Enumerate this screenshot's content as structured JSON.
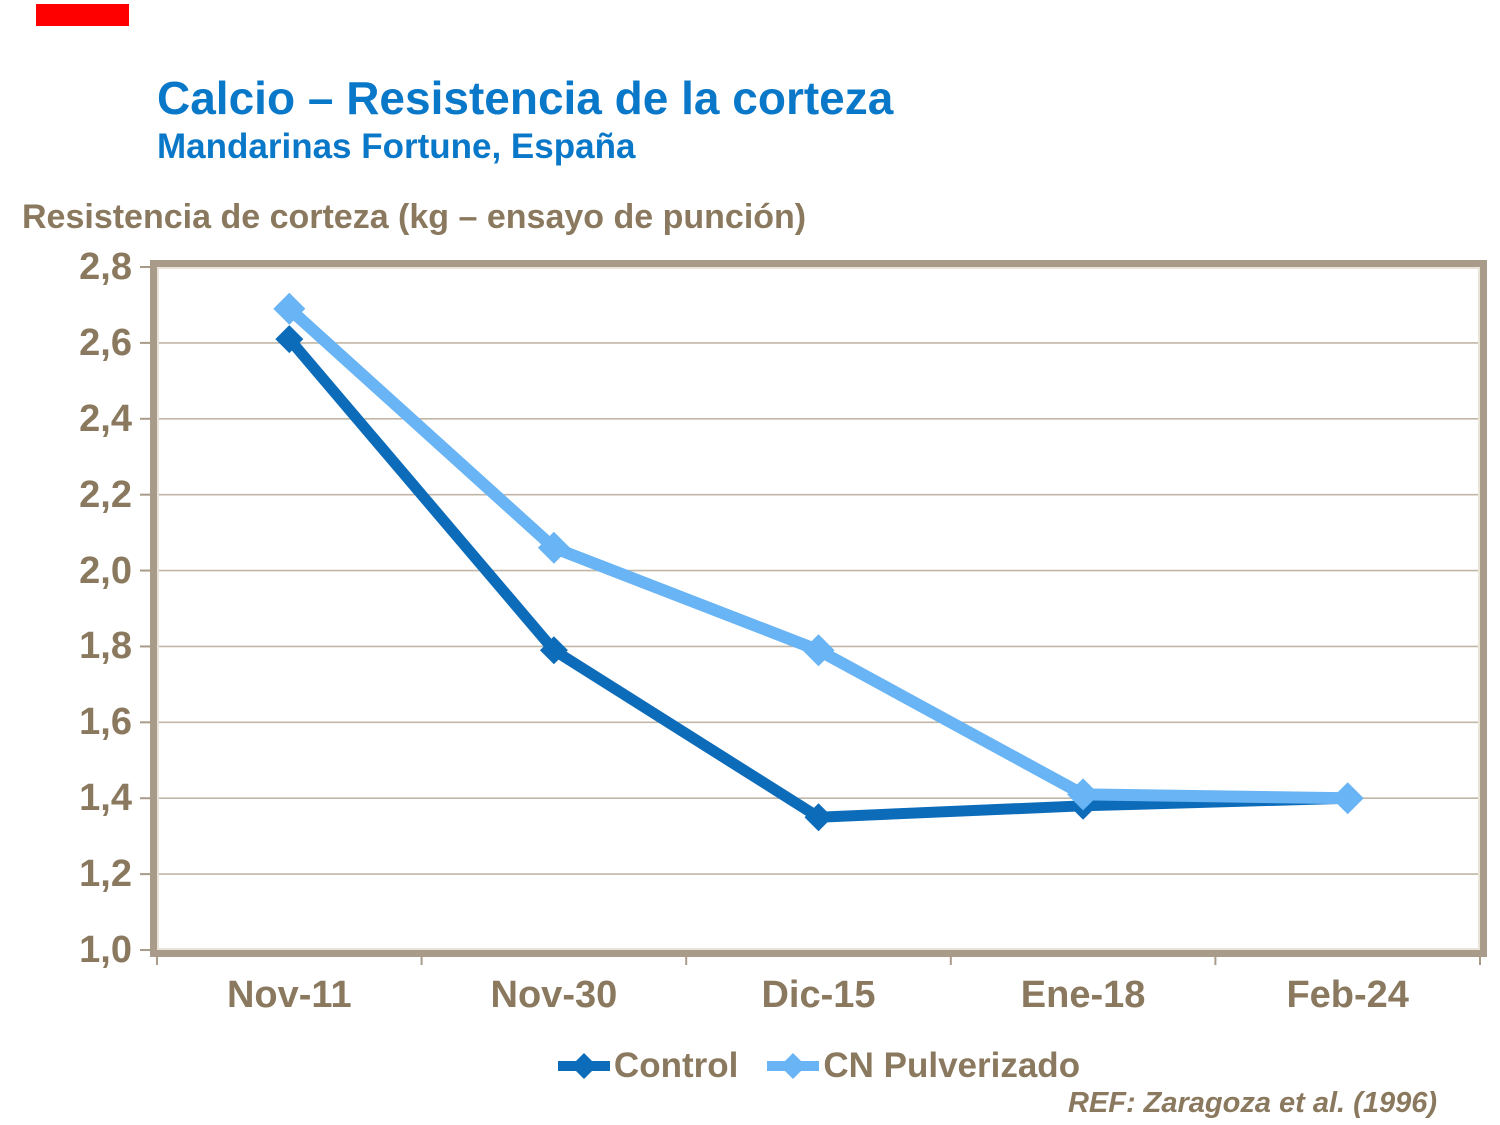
{
  "page": {
    "title": "Calcio – Resistencia de la corteza",
    "subtitle": "Mandarinas Fortune, España",
    "axis_title": "Resistencia de corteza (kg – ensayo de punción)",
    "reference": "REF: Zaragoza et al. (1996)"
  },
  "colors": {
    "title_blue": "#0a78c8",
    "text_brown": "#8a795e",
    "gridline": "#c2b6a6",
    "plot_border": "#a89b8a",
    "plot_border_highlight": "#e9e3d8",
    "control_line": "#0d6cba",
    "cn_line": "#68b4f4",
    "red_marker": "#fe0000",
    "background": "#ffffff"
  },
  "chart_data": {
    "type": "line",
    "title": "Calcio – Resistencia de la corteza",
    "subtitle": "Mandarinas Fortune, España",
    "ylabel": "Resistencia de corteza (kg – ensayo de punción)",
    "categories": [
      "Nov-11",
      "Nov-30",
      "Dic-15",
      "Ene-18",
      "Feb-24"
    ],
    "series": [
      {
        "name": "Control",
        "values": [
          2.61,
          1.79,
          1.35,
          1.38,
          1.4
        ],
        "color": "#0d6cba",
        "marker": "diamond",
        "line_width": 11,
        "marker_half": 14
      },
      {
        "name": "CN Pulverizado",
        "values": [
          2.69,
          2.06,
          1.79,
          1.41,
          1.4
        ],
        "color": "#68b4f4",
        "marker": "diamond",
        "line_width": 12,
        "marker_half": 16
      }
    ],
    "ylim": [
      1.0,
      2.8
    ],
    "y_tick_step": 0.2,
    "y_tick_labels": [
      "2,8",
      "2,6",
      "2,4",
      "2,2",
      "2,0",
      "1,8",
      "1,6",
      "1,4",
      "1,2",
      "1,0"
    ],
    "grid": true,
    "legend_position": "bottom",
    "reference": "REF: Zaragoza et al. (1996)"
  },
  "legend": {
    "items": [
      {
        "label": "Control",
        "series": "0"
      },
      {
        "label": "CN Pulverizado",
        "series": "1"
      }
    ]
  }
}
